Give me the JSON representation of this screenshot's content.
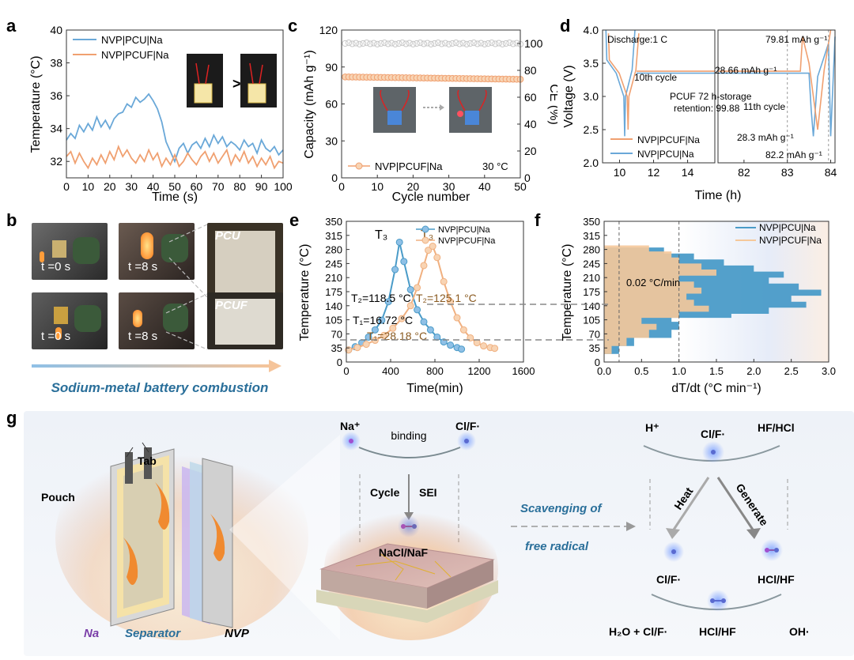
{
  "panels": {
    "a": "a",
    "b": "b",
    "c": "c",
    "d": "d",
    "e": "e",
    "f": "f",
    "g": "g"
  },
  "chart_data": [
    {
      "panel": "a",
      "type": "line",
      "xlabel": "Time (s)",
      "ylabel": "Temperature (°C)",
      "xlim": [
        0,
        100
      ],
      "ylim": [
        31,
        40
      ],
      "xticks": [
        "0",
        "10",
        "20",
        "30",
        "40",
        "50",
        "60",
        "70",
        "80",
        "90",
        "100"
      ],
      "yticks": [
        "32",
        "34",
        "36",
        "38",
        "40"
      ],
      "legend": "top-left",
      "series": [
        {
          "name": "NVP|PCU|Na",
          "color": "#6aa8d8",
          "x": [
            0,
            2,
            4,
            6,
            8,
            10,
            12,
            14,
            16,
            18,
            20,
            22,
            24,
            26,
            28,
            30,
            32,
            34,
            36,
            38,
            40,
            42,
            44,
            46,
            48,
            50,
            52,
            54,
            56,
            58,
            60,
            62,
            64,
            66,
            68,
            70,
            72,
            74,
            76,
            78,
            80,
            82,
            84,
            86,
            88,
            90,
            92,
            94,
            96,
            98,
            100
          ],
          "y": [
            33.3,
            33.7,
            33.4,
            34.2,
            33.8,
            34.3,
            33.9,
            34.7,
            34.1,
            34.5,
            34.0,
            34.6,
            34.9,
            35.0,
            35.5,
            35.3,
            35.9,
            35.6,
            35.8,
            36.1,
            35.7,
            35.2,
            34.4,
            33.2,
            32.6,
            32.0,
            32.8,
            33.1,
            32.5,
            33.0,
            33.2,
            32.8,
            33.4,
            32.9,
            33.6,
            33.1,
            33.5,
            32.9,
            33.2,
            33.0,
            32.7,
            33.3,
            32.9,
            33.1,
            32.5,
            33.3,
            32.8,
            32.6,
            32.9,
            32.4,
            32.7
          ]
        },
        {
          "name": "NVP|PCUF|Na",
          "color": "#f0a070",
          "x": [
            0,
            2,
            4,
            6,
            8,
            10,
            12,
            14,
            16,
            18,
            20,
            22,
            24,
            26,
            28,
            30,
            32,
            34,
            36,
            38,
            40,
            42,
            44,
            46,
            48,
            50,
            52,
            54,
            56,
            58,
            60,
            62,
            64,
            66,
            68,
            70,
            72,
            74,
            76,
            78,
            80,
            82,
            84,
            86,
            88,
            90,
            92,
            94,
            96,
            98,
            100
          ],
          "y": [
            32.3,
            32.6,
            31.9,
            32.5,
            32.0,
            31.6,
            32.2,
            31.8,
            32.4,
            31.9,
            32.6,
            32.1,
            32.9,
            32.3,
            32.7,
            32.2,
            31.9,
            32.4,
            32.0,
            32.7,
            32.1,
            32.5,
            31.7,
            32.2,
            31.8,
            32.4,
            31.7,
            32.0,
            32.5,
            32.1,
            31.8,
            32.3,
            32.6,
            32.0,
            32.5,
            31.9,
            32.3,
            32.7,
            31.8,
            32.4,
            32.0,
            32.6,
            31.9,
            32.3,
            31.7,
            32.2,
            31.8,
            32.3,
            31.6,
            32.0,
            31.9
          ]
        }
      ]
    },
    {
      "panel": "c",
      "type": "scatter",
      "xlabel": "Cycle number",
      "ylabel": "Capacity (mAh g⁻¹)",
      "y2label": "CE (%)",
      "xlim": [
        0,
        50
      ],
      "ylim": [
        0,
        120
      ],
      "y2lim": [
        0,
        110
      ],
      "xticks": [
        "0",
        "10",
        "20",
        "30",
        "40",
        "50"
      ],
      "yticks": [
        "0",
        "30",
        "60",
        "90",
        "120"
      ],
      "y2ticks": [
        "0",
        "20",
        "40",
        "60",
        "80",
        "100"
      ],
      "annotation": "30 °C",
      "series": [
        {
          "name": "NVP|PCUF|Na",
          "color": "#f0a070",
          "axis": "left",
          "capacity": 82,
          "x_range": [
            1,
            50
          ]
        },
        {
          "name": "",
          "color": "#bbbbbb",
          "axis": "right",
          "ce": 100,
          "x_range": [
            1,
            50
          ]
        }
      ]
    },
    {
      "panel": "d",
      "type": "line",
      "xlabel": "Time (h)",
      "ylabel": "Voltage (V)",
      "ylim": [
        2.0,
        4.0
      ],
      "xticks_left": [
        "10",
        "12",
        "14"
      ],
      "xticks_right": [
        "82",
        "83",
        "84"
      ],
      "yticks": [
        "2.0",
        "2.5",
        "3.0",
        "3.5",
        "4.0"
      ],
      "annotations": [
        "Discharge:1 C",
        "10th cycle",
        "11th cycle",
        "PCUF 72 h-storage",
        "retention: 99.88",
        "79.81 mAh g⁻¹",
        "28.66 mAh g⁻¹",
        "28.3 mAh g⁻¹",
        "82.2 mAh g⁻¹"
      ],
      "series": [
        {
          "name": "NVP|PCUF|Na",
          "color": "#f0a070"
        },
        {
          "name": "NVP|PCU|Na",
          "color": "#6aa8d8"
        }
      ]
    },
    {
      "panel": "e",
      "type": "line",
      "xlabel": "Time(min)",
      "ylabel": "Temperature (°C)",
      "xlim": [
        0,
        1600
      ],
      "ylim": [
        0,
        350
      ],
      "xticks": [
        "0",
        "400",
        "800",
        "1200",
        "1600"
      ],
      "yticks": [
        "0",
        "35",
        "70",
        "105",
        "140",
        "175",
        "210",
        "245",
        "280",
        "315",
        "350"
      ],
      "annotations": {
        "T3_a": "T₃",
        "T3_b": "T₃",
        "T2_a": "T₂=118.5 °C",
        "T2_b": "T₂=125.1 °C",
        "T1_a": "T₁=16.72 °C",
        "T1_b": "T₁=28.18 °C"
      },
      "series": [
        {
          "name": "NVP|PCU|Na",
          "color": "#4a9bc8",
          "x": [
            20,
            80,
            140,
            200,
            260,
            320,
            380,
            440,
            480,
            520,
            580,
            640,
            700,
            760,
            820,
            880,
            940,
            1000,
            1040
          ],
          "y": [
            30,
            38,
            48,
            62,
            80,
            104,
            150,
            230,
            298,
            250,
            180,
            130,
            100,
            80,
            62,
            50,
            42,
            36,
            32
          ]
        },
        {
          "name": "NVP|PCUF|Na",
          "color": "#f0b080",
          "x": [
            20,
            100,
            180,
            260,
            340,
            420,
            500,
            580,
            640,
            700,
            740,
            780,
            820,
            880,
            940,
            1000,
            1060,
            1120,
            1180,
            1240,
            1300,
            1340
          ],
          "y": [
            30,
            36,
            44,
            54,
            66,
            84,
            108,
            140,
            185,
            240,
            278,
            288,
            260,
            200,
            150,
            110,
            80,
            60,
            48,
            40,
            36,
            34
          ]
        }
      ]
    },
    {
      "panel": "f",
      "type": "area",
      "xlabel": "dT/dt (°C min⁻¹)",
      "ylabel": "Temperature (°C)",
      "xlim": [
        0,
        3.0
      ],
      "ylim": [
        0,
        350
      ],
      "xticks": [
        "0.0",
        "0.5",
        "1.0",
        "1.5",
        "2.0",
        "2.5",
        "3.0"
      ],
      "yticks": [
        "0",
        "35",
        "70",
        "105",
        "140",
        "175",
        "210",
        "245",
        "280",
        "315",
        "350"
      ],
      "annotation": "0.02 °C/min",
      "series": [
        {
          "name": "NVP|PCU|Na",
          "color": "#4a9bc8",
          "temps": [
            20,
            40,
            60,
            80,
            100,
            110,
            120,
            135,
            150,
            165,
            180,
            195,
            210,
            225,
            240,
            255,
            270,
            285
          ],
          "rates": [
            0.2,
            0.4,
            0.9,
            1.0,
            0.9,
            1.7,
            2.2,
            2.7,
            2.5,
            2.9,
            2.6,
            2.2,
            2.4,
            2.0,
            1.6,
            1.2,
            0.8,
            0.4
          ]
        },
        {
          "name": "NVP|PCUF|Na",
          "color": "#f5c89a",
          "temps": [
            20,
            40,
            60,
            80,
            95,
            110,
            125,
            140,
            155,
            170,
            185,
            200,
            215,
            230,
            245,
            260,
            275,
            290
          ],
          "rates": [
            0.1,
            0.3,
            0.6,
            0.7,
            0.5,
            1.0,
            1.4,
            1.2,
            1.1,
            1.3,
            1.2,
            1.0,
            1.5,
            1.3,
            1.0,
            0.9,
            0.6,
            0.3
          ]
        }
      ]
    }
  ],
  "panel_b": {
    "t0_top": "t =0 s",
    "t8_top": "t =8 s",
    "pcu": "PCU",
    "t0_bottom": "t =0 s",
    "t8_bottom": "t =8 s",
    "pcuf": "PCUF",
    "caption": "Sodium-metal battery combustion"
  },
  "panel_g": {
    "tab": "Tab",
    "pouch": "Pouch",
    "na": "Na",
    "separator": "Separator",
    "nvp": "NVP",
    "na_plus": "Na⁺",
    "cl_f_1": "Cl/F·",
    "binding": "binding",
    "cycle": "Cycle",
    "sei": "SEI",
    "nacl_naf": "NaCl/NaF",
    "scavenging": "Scavenging of",
    "free_radical": "free radical",
    "h_plus": "H⁺",
    "cl_f_2": "Cl/F·",
    "hf_hcl": "HF/HCl",
    "heat": "Heat",
    "generate": "Generate",
    "cl_f_3": "Cl/F·",
    "hcl_hf_1": "HCl/HF",
    "h2o_clf": "H₂O + Cl/F·",
    "hcl_hf_2": "HCl/HF",
    "oh": "OH·"
  },
  "colors": {
    "blue": "#6aa8d8",
    "orange": "#f0a070",
    "caption_blue": "#2a6f9a"
  }
}
